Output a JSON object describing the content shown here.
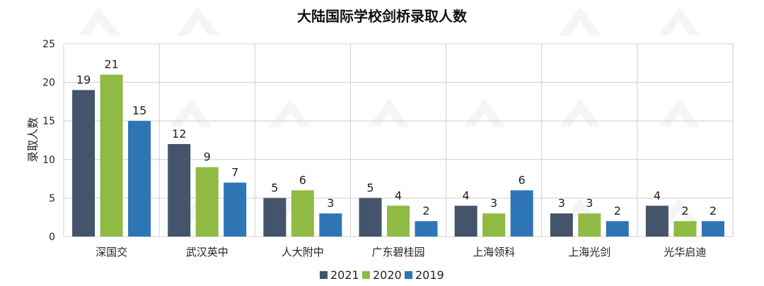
{
  "chart_data": {
    "type": "bar",
    "title": "大陆国际学校剑桥录取人数",
    "ylabel": "录取人数",
    "xlabel": "",
    "ylim": [
      0,
      25
    ],
    "yticks": [
      0,
      5,
      10,
      15,
      20,
      25
    ],
    "grid": true,
    "legend_position": "bottom",
    "categories": [
      "深国交",
      "武汉英中",
      "人大附中",
      "广东碧桂园",
      "上海领科",
      "上海光剑",
      "光华启迪"
    ],
    "series": [
      {
        "name": "2021",
        "color": "#44546a",
        "values": [
          19,
          12,
          5,
          5,
          4,
          3,
          4
        ]
      },
      {
        "name": "2020",
        "color": "#8fba44",
        "values": [
          21,
          9,
          6,
          4,
          3,
          3,
          2
        ]
      },
      {
        "name": "2019",
        "color": "#2e75b6",
        "values": [
          15,
          7,
          3,
          2,
          6,
          2,
          2
        ]
      }
    ]
  }
}
